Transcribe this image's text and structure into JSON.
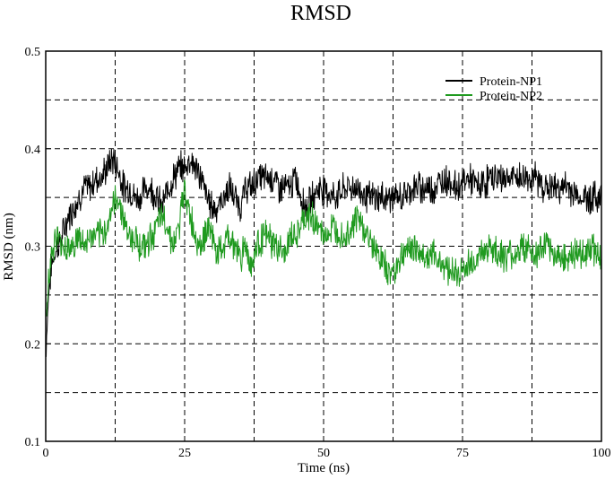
{
  "chart_data": {
    "type": "line",
    "title": "RMSD",
    "xlabel": "Time (ns)",
    "ylabel": "RMSD (nm)",
    "xlim": [
      0,
      100
    ],
    "ylim": [
      0.1,
      0.5
    ],
    "x_ticks": [
      0,
      25,
      50,
      75,
      100
    ],
    "y_ticks": [
      0.1,
      0.2,
      0.3,
      0.4,
      0.5
    ],
    "x_tick_labels": [
      "0",
      "25",
      "50",
      "75",
      "100"
    ],
    "y_tick_labels": [
      "0.1",
      "0.2",
      "0.3",
      "0.4",
      "0.5"
    ],
    "grid": true,
    "legend_position": "top-right",
    "series": [
      {
        "name": "Protein-NP1",
        "color": "#000000",
        "x": [
          0,
          0.5,
          1,
          2,
          3,
          4,
          5,
          6,
          7,
          8,
          9,
          10,
          11,
          12,
          13,
          14,
          15,
          16,
          17,
          18,
          19,
          20,
          21,
          22,
          23,
          24,
          25,
          26,
          27,
          28,
          29,
          30,
          31,
          32,
          33,
          34,
          35,
          36,
          37,
          38,
          39,
          40,
          41,
          42,
          43,
          44,
          45,
          46,
          47,
          48,
          49,
          50,
          52,
          54,
          56,
          58,
          60,
          62,
          64,
          66,
          68,
          70,
          72,
          74,
          76,
          78,
          80,
          82,
          84,
          86,
          88,
          90,
          92,
          94,
          96,
          98,
          100
        ],
        "y": [
          0.19,
          0.25,
          0.28,
          0.3,
          0.31,
          0.33,
          0.34,
          0.35,
          0.36,
          0.36,
          0.37,
          0.37,
          0.38,
          0.39,
          0.38,
          0.36,
          0.36,
          0.35,
          0.35,
          0.36,
          0.36,
          0.35,
          0.34,
          0.36,
          0.37,
          0.38,
          0.38,
          0.39,
          0.38,
          0.37,
          0.35,
          0.34,
          0.34,
          0.35,
          0.36,
          0.35,
          0.34,
          0.36,
          0.36,
          0.37,
          0.37,
          0.37,
          0.37,
          0.36,
          0.36,
          0.36,
          0.37,
          0.35,
          0.34,
          0.35,
          0.36,
          0.36,
          0.35,
          0.36,
          0.36,
          0.35,
          0.35,
          0.35,
          0.35,
          0.36,
          0.36,
          0.36,
          0.37,
          0.36,
          0.37,
          0.36,
          0.37,
          0.37,
          0.37,
          0.37,
          0.37,
          0.36,
          0.36,
          0.36,
          0.35,
          0.35,
          0.35
        ]
      },
      {
        "name": "Protein-NP2",
        "color": "#1f9a1f",
        "x": [
          0,
          0.5,
          1,
          2,
          3,
          4,
          5,
          6,
          7,
          8,
          9,
          10,
          11,
          12,
          13,
          14,
          15,
          16,
          17,
          18,
          19,
          20,
          21,
          22,
          23,
          24,
          25,
          26,
          27,
          28,
          29,
          30,
          31,
          32,
          33,
          34,
          35,
          36,
          37,
          38,
          39,
          40,
          41,
          42,
          43,
          44,
          45,
          46,
          47,
          48,
          49,
          50,
          52,
          54,
          56,
          58,
          60,
          62,
          64,
          66,
          68,
          70,
          72,
          74,
          76,
          78,
          80,
          82,
          84,
          86,
          88,
          90,
          92,
          94,
          96,
          98,
          100
        ],
        "y": [
          0.22,
          0.27,
          0.29,
          0.31,
          0.3,
          0.3,
          0.3,
          0.31,
          0.3,
          0.31,
          0.31,
          0.31,
          0.32,
          0.34,
          0.35,
          0.33,
          0.31,
          0.31,
          0.3,
          0.3,
          0.31,
          0.32,
          0.33,
          0.32,
          0.3,
          0.32,
          0.36,
          0.33,
          0.31,
          0.3,
          0.32,
          0.31,
          0.29,
          0.3,
          0.31,
          0.3,
          0.29,
          0.3,
          0.28,
          0.3,
          0.31,
          0.31,
          0.3,
          0.3,
          0.29,
          0.31,
          0.31,
          0.32,
          0.33,
          0.33,
          0.32,
          0.31,
          0.32,
          0.31,
          0.33,
          0.31,
          0.29,
          0.27,
          0.29,
          0.3,
          0.29,
          0.29,
          0.28,
          0.27,
          0.28,
          0.29,
          0.3,
          0.29,
          0.29,
          0.3,
          0.29,
          0.3,
          0.29,
          0.29,
          0.29,
          0.3,
          0.29
        ]
      }
    ]
  }
}
